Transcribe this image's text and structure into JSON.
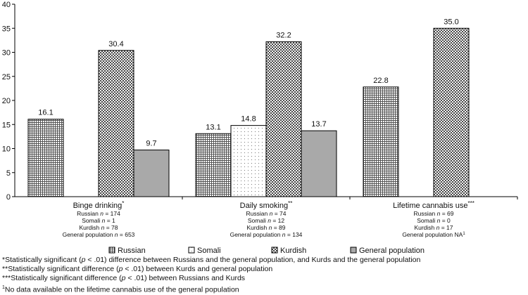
{
  "chart_data": {
    "type": "bar",
    "ylim": [
      0,
      40
    ],
    "yticks": [
      0,
      5,
      10,
      15,
      20,
      25,
      30,
      35,
      40
    ],
    "groups": [
      {
        "label": "Binge drinking",
        "marker": "*",
        "sample_lines": [
          {
            "group": "Russian",
            "n": "174"
          },
          {
            "group": "Somali",
            "n": "1"
          },
          {
            "group": "Kurdish",
            "n": "78"
          },
          {
            "group": "General population",
            "n": "653"
          }
        ]
      },
      {
        "label": "Daily smoking",
        "marker": "**",
        "sample_lines": [
          {
            "group": "Russian",
            "n": "74"
          },
          {
            "group": "Somali",
            "n": "12"
          },
          {
            "group": "Kurdish",
            "n": "89"
          },
          {
            "group": "General population",
            "n": "134"
          }
        ]
      },
      {
        "label": "Lifetime cannabis use",
        "marker": "***",
        "sample_lines": [
          {
            "group": "Russian",
            "n": "69"
          },
          {
            "group": "Somali",
            "n": "0"
          },
          {
            "group": "Kurdish",
            "n": "17"
          },
          {
            "group": "General population",
            "text": "NA",
            "sup": "1"
          }
        ]
      }
    ],
    "series": [
      {
        "name": "Russian",
        "pattern": "grid",
        "values": [
          16.1,
          13.1,
          22.8
        ],
        "labels": [
          "16.1",
          "13.1",
          "22.8"
        ]
      },
      {
        "name": "Somali",
        "pattern": "dots",
        "values": [
          null,
          14.8,
          null
        ],
        "labels": [
          "",
          "14.8",
          ""
        ]
      },
      {
        "name": "Kurdish",
        "pattern": "checks",
        "values": [
          30.4,
          32.2,
          35.0
        ],
        "labels": [
          "30.4",
          "32.2",
          "35.0"
        ]
      },
      {
        "name": "General population",
        "pattern": "gray",
        "values": [
          9.7,
          13.7,
          null
        ],
        "labels": [
          "9.7",
          "13.7",
          ""
        ]
      }
    ]
  },
  "footnotes": [
    {
      "marker": "*",
      "pre": "Statistically significant (",
      "p": "p",
      "post": " < .01) difference between Russians and the general population, and Kurds and the general population"
    },
    {
      "marker": "**",
      "pre": "Statistically significant difference (",
      "p": "p",
      "post": " < .01) between Kurds and general population"
    },
    {
      "marker": "***",
      "pre": "Statistically significant difference (",
      "p": "p",
      "post": " < .01) between Russians and Kurds"
    },
    {
      "marker": "1",
      "pre": "No data available on the lifetime cannabis use of the general population",
      "p": "",
      "post": ""
    }
  ]
}
